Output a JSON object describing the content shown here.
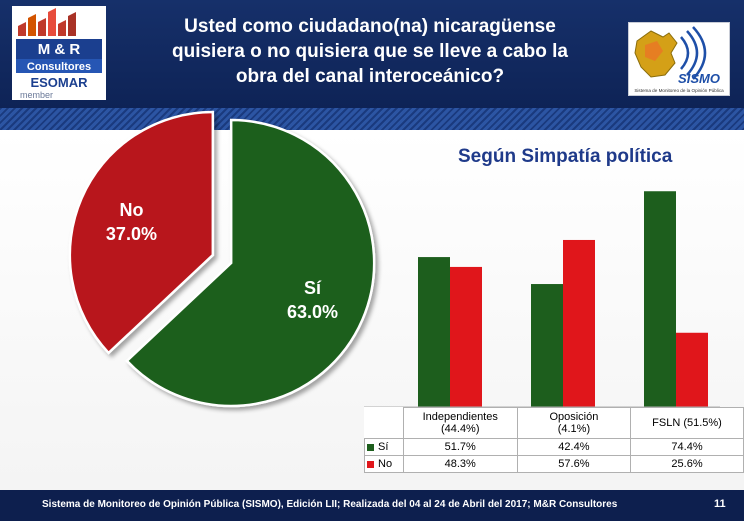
{
  "header": {
    "title_lines": [
      "Usted como ciudadano(na) nicaragüense",
      "quisiera o no quisiera que se lleve a cabo la",
      "obra del canal interoceánico?"
    ],
    "logo_left": {
      "line1": "M & R",
      "line2": "Consultores",
      "line3": "ESOMAR",
      "line4": "member"
    },
    "logo_right": {
      "name": "SISMO",
      "caption": "Sistema de Monitoreo de la Opinión Pública"
    }
  },
  "colors": {
    "green": "#1d5e1d",
    "red": "#e0161b",
    "navy": "#16306a"
  },
  "chart_data": [
    {
      "type": "pie",
      "slices": [
        {
          "label": "Sí",
          "value": 63.0,
          "display": "63.0%",
          "color": "#1d5e1d"
        },
        {
          "label": "No",
          "value": 37.0,
          "display": "37.0%",
          "color": "#b8151c"
        }
      ]
    },
    {
      "type": "bar",
      "title": "Según Simpatía política",
      "categories": [
        "Independientes (44.4%)",
        "Oposición (4.1%)",
        "FSLN (51.5%)"
      ],
      "category_lines": [
        [
          "Independientes",
          "(44.4%)"
        ],
        [
          "Oposición",
          "(4.1%)"
        ],
        [
          "FSLN (51.5%)"
        ]
      ],
      "series": [
        {
          "name": "Sí",
          "values": [
            51.7,
            42.4,
            74.4
          ],
          "display": [
            "51.7%",
            "42.4%",
            "74.4%"
          ],
          "color": "#1d5e1d"
        },
        {
          "name": "No",
          "values": [
            48.3,
            57.6,
            25.6
          ],
          "display": [
            "48.3%",
            "57.6%",
            "25.6%"
          ],
          "color": "#e0161b"
        }
      ],
      "ylim": [
        0,
        80
      ],
      "legend": "data table"
    }
  ],
  "footer": {
    "source": "Sistema de Monitoreo de Opinión Pública (SISMO), Edición LII; Realizada del 04 al 24 de Abril del 2017; M&R Consultores",
    "page": "11"
  }
}
